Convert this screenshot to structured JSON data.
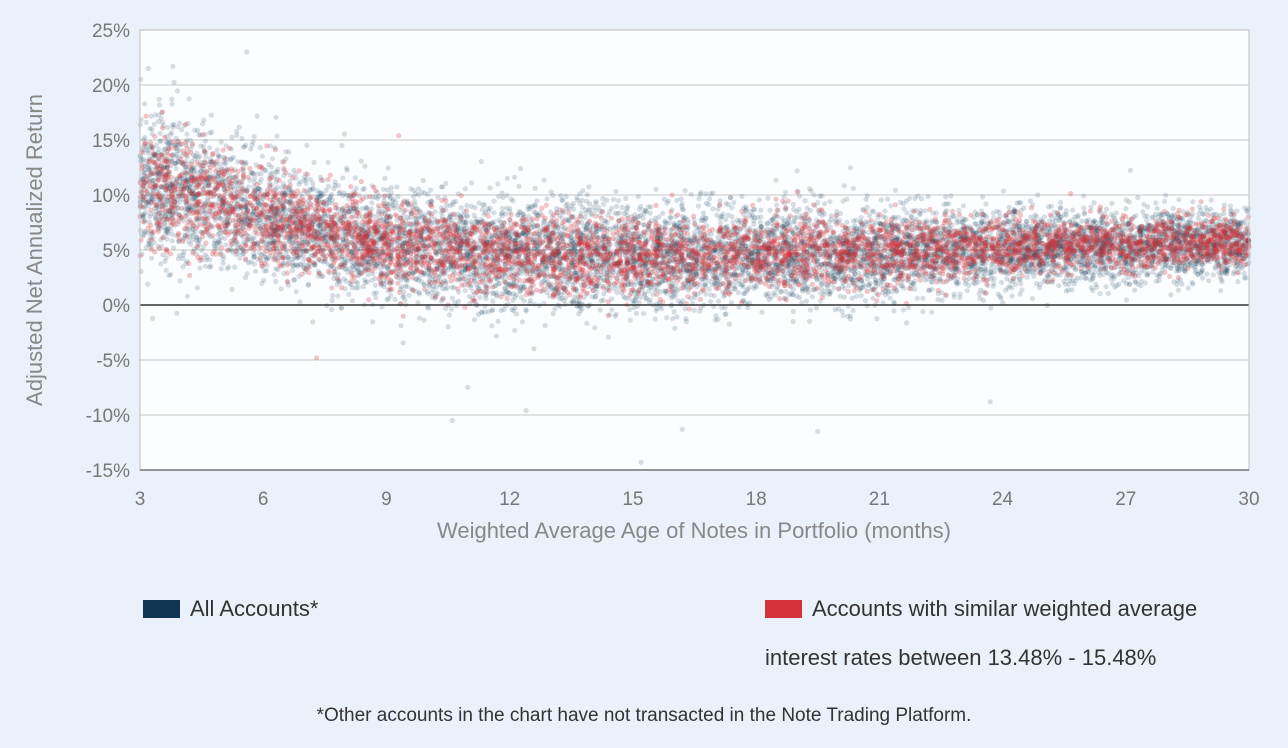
{
  "colors": {
    "all_accounts": "#0f3553",
    "similar_accounts": "#d4313a",
    "plot_background": "#fcfdff",
    "page_background": "#eaf1fb",
    "gridline": "#d2d2d2",
    "zero_line": "#333333"
  },
  "chart_data": {
    "type": "scatter",
    "title": "",
    "xlabel": "Weighted Average Age of Notes in Portfolio (months)",
    "ylabel": "Adjusted Net Annualized Return",
    "xlim": [
      3,
      30
    ],
    "ylim": [
      -15,
      25
    ],
    "x_ticks": [
      3,
      6,
      9,
      12,
      15,
      18,
      21,
      24,
      27,
      30
    ],
    "y_ticks": [
      -15,
      -10,
      -5,
      0,
      5,
      10,
      15,
      20,
      25
    ],
    "y_tick_labels": [
      "-15%",
      "-10%",
      "-5%",
      "0%",
      "5%",
      "10%",
      "15%",
      "20%",
      "25%"
    ],
    "grid": true,
    "legend_position": "bottom",
    "series": [
      {
        "name": "All Accounts*",
        "color": "#0f3553",
        "trend": {
          "x": [
            3,
            4,
            5,
            6,
            7,
            8,
            9,
            10,
            12,
            15,
            18,
            21,
            24,
            27,
            30
          ],
          "y_median": [
            11,
            10.2,
            9.2,
            8,
            7,
            6.2,
            5.6,
            5,
            4.5,
            4.3,
            4.5,
            4.8,
            5.1,
            5.4,
            5.6
          ],
          "y_spread_sd": [
            3.5,
            3.3,
            3.1,
            2.9,
            2.7,
            2.6,
            2.6,
            2.6,
            2.5,
            2.4,
            2.2,
            2.0,
            1.8,
            1.6,
            1.5
          ]
        },
        "extremes": [
          {
            "x": 5.6,
            "y": 23
          },
          {
            "x": 3.2,
            "y": 21.5
          },
          {
            "x": 3.8,
            "y": 21.7
          },
          {
            "x": 15.2,
            "y": -14.3
          },
          {
            "x": 16.2,
            "y": -11.3
          },
          {
            "x": 19.5,
            "y": -11.5
          },
          {
            "x": 12.4,
            "y": -9.6
          },
          {
            "x": 10.6,
            "y": -10.5
          },
          {
            "x": 23.7,
            "y": -8.8
          }
        ]
      },
      {
        "name": "Accounts with similar weighted average interest rates between 13.48% - 15.48%",
        "color": "#d4313a",
        "trend": {
          "x": [
            3,
            4,
            5,
            6,
            7,
            8,
            9,
            10,
            12,
            15,
            18,
            21,
            24,
            27,
            30
          ],
          "y_median": [
            11,
            10.3,
            9.4,
            8.2,
            7.2,
            6.3,
            5.6,
            5.1,
            4.6,
            4.4,
            4.6,
            4.9,
            5.2,
            5.5,
            5.7
          ],
          "y_spread_sd": [
            2.6,
            2.5,
            2.3,
            2.2,
            2.0,
            1.9,
            1.9,
            1.9,
            1.8,
            1.8,
            1.6,
            1.5,
            1.3,
            1.2,
            1.1
          ]
        },
        "extremes": [
          {
            "x": 6.5,
            "y": 13
          },
          {
            "x": 9.3,
            "y": 15.4
          },
          {
            "x": 7.3,
            "y": -4.8
          }
        ]
      }
    ]
  },
  "legend": {
    "all_accounts_label": "All Accounts*",
    "similar_label_line1": "Accounts with similar weighted average",
    "similar_label_line2": "interest rates between 13.48% - 15.48%"
  },
  "footnote": "*Other accounts in the chart have not transacted in the Note Trading Platform."
}
